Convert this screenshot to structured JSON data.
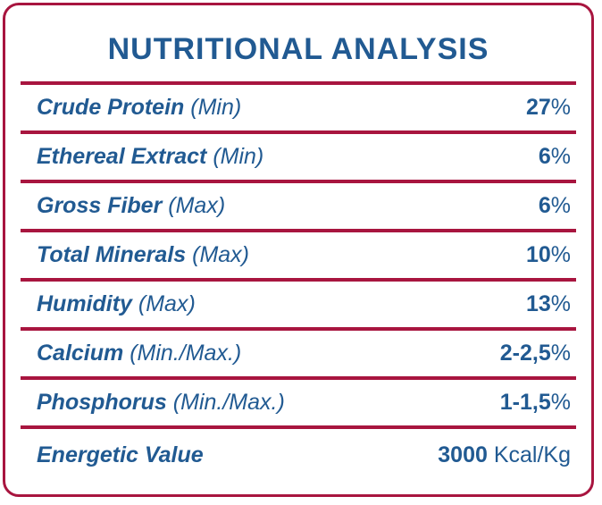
{
  "title": "NUTRITIONAL ANALYSIS",
  "rows": [
    {
      "label": "Crude Protein",
      "qualifier": "(Min)",
      "value": "27",
      "unit": "%"
    },
    {
      "label": "Ethereal Extract",
      "qualifier": "(Min)",
      "value": "6",
      "unit": "%"
    },
    {
      "label": "Gross Fiber",
      "qualifier": "(Max)",
      "value": "6",
      "unit": "%"
    },
    {
      "label": "Total Minerals",
      "qualifier": "(Max)",
      "value": "10",
      "unit": "%"
    },
    {
      "label": "Humidity",
      "qualifier": "(Max)",
      "value": "13",
      "unit": "%"
    },
    {
      "label": "Calcium",
      "qualifier": "(Min./Max.)",
      "value": "2-2,5",
      "unit": "%"
    },
    {
      "label": "Phosphorus",
      "qualifier": "(Min./Max.)",
      "value": "1-1,5",
      "unit": "%"
    },
    {
      "label": "Energetic Value",
      "qualifier": "",
      "value": "3000",
      "unit": " Kcal/Kg"
    }
  ],
  "colors": {
    "text": "#215a92",
    "border": "#a8153f"
  }
}
